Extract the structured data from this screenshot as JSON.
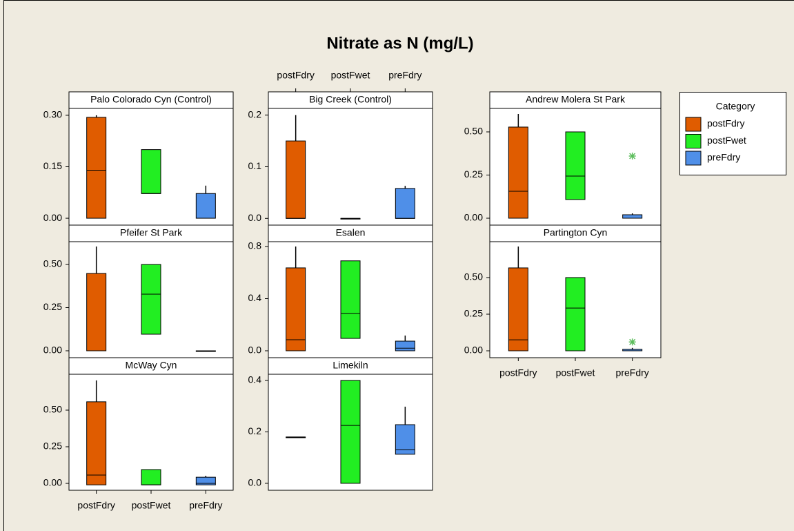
{
  "chart_data": {
    "type": "box",
    "title": "Nitrate as N (mg/L)",
    "legend_title": "Category",
    "categories": [
      "postFdry",
      "postFwet",
      "preFdry"
    ],
    "colors": [
      "#e05c00",
      "#22ee22",
      "#4f8fe8"
    ],
    "outlier_color": "#5cbd5c",
    "panels": [
      {
        "title": "Palo Colorado Cyn (Control)",
        "ylim": [
          -0.02,
          0.32
        ],
        "yticks": [
          {
            "value": 0,
            "label": "0.00"
          },
          {
            "value": 0.15,
            "label": "0.15"
          },
          {
            "value": 0.3,
            "label": "0.30"
          }
        ],
        "boxes": [
          {
            "min": 0,
            "q1": 0,
            "median": 0.14,
            "q3": 0.294,
            "max": 0.3
          },
          {
            "min": 0.072,
            "q1": 0.072,
            "median": 0.072,
            "q3": 0.2,
            "max": 0.2
          },
          {
            "min": 0,
            "q1": 0,
            "median": 0,
            "q3": 0.072,
            "max": 0.095
          }
        ]
      },
      {
        "title": "Big Creek (Control)",
        "ylim": [
          -0.013,
          0.213
        ],
        "yticks": [
          {
            "value": 0,
            "label": "0.0"
          },
          0.1,
          0.2
        ],
        "boxes": [
          {
            "min": 0,
            "q1": 0,
            "median": 0,
            "q3": 0.15,
            "max": 0.2
          },
          {
            "min": 0,
            "q1": 0,
            "median": 0,
            "q3": 0,
            "max": 0
          },
          {
            "min": 0,
            "q1": 0,
            "median": 0,
            "q3": 0.058,
            "max": 0.063
          }
        ]
      },
      {
        "title": "Andrew Molera St Park",
        "ylim": [
          -0.04,
          0.636
        ],
        "yticks": [
          {
            "value": 0,
            "label": "0.00"
          },
          {
            "value": 0.25,
            "label": "0.25"
          },
          {
            "value": 0.5,
            "label": "0.50"
          }
        ],
        "boxes": [
          {
            "min": 0,
            "q1": 0,
            "median": 0.156,
            "q3": 0.528,
            "max": 0.604
          },
          {
            "min": 0.108,
            "q1": 0.108,
            "median": 0.244,
            "q3": 0.5,
            "max": 0.5
          },
          {
            "min": 0,
            "q1": 0,
            "median": 0,
            "q3": 0.02,
            "max": 0.028,
            "outliers": [
              0.36
            ]
          }
        ]
      },
      {
        "title": "Pfeifer St Park",
        "ylim": [
          -0.04,
          0.632
        ],
        "yticks": [
          {
            "value": 0,
            "label": "0.00"
          },
          {
            "value": 0.25,
            "label": "0.25"
          },
          {
            "value": 0.5,
            "label": "0.50"
          }
        ],
        "boxes": [
          {
            "min": 0,
            "q1": 0,
            "median": 0,
            "q3": 0.448,
            "max": 0.604
          },
          {
            "min": 0.096,
            "q1": 0.096,
            "median": 0.328,
            "q3": 0.5,
            "max": 0.5
          },
          {
            "min": 0,
            "q1": 0,
            "median": 0,
            "q3": 0,
            "max": 0
          }
        ]
      },
      {
        "title": "Esalen",
        "ylim": [
          -0.053,
          0.837
        ],
        "yticks": [
          {
            "value": 0,
            "label": "0.0"
          },
          0.4,
          0.8
        ],
        "boxes": [
          {
            "min": 0,
            "q1": 0,
            "median": 0.085,
            "q3": 0.636,
            "max": 0.8
          },
          {
            "min": 0.095,
            "q1": 0.095,
            "median": 0.286,
            "q3": 0.69,
            "max": 0.69
          },
          {
            "min": 0,
            "q1": 0,
            "median": 0.02,
            "q3": 0.074,
            "max": 0.117
          }
        ]
      },
      {
        "title": "Partington Cyn",
        "ylim": [
          -0.047,
          0.745
        ],
        "yticks": [
          {
            "value": 0,
            "label": "0.00"
          },
          {
            "value": 0.25,
            "label": "0.25"
          },
          {
            "value": 0.5,
            "label": "0.50"
          }
        ],
        "boxes": [
          {
            "min": 0,
            "q1": 0,
            "median": 0.075,
            "q3": 0.566,
            "max": 0.712
          },
          {
            "min": 0,
            "q1": 0,
            "median": 0.292,
            "q3": 0.5,
            "max": 0.5
          },
          {
            "min": 0,
            "q1": 0,
            "median": 0,
            "q3": 0.01,
            "max": 0.02,
            "outliers": [
              0.06
            ]
          }
        ]
      },
      {
        "title": "McWay Cyn",
        "ylim": [
          -0.047,
          0.745
        ],
        "yticks": [
          {
            "value": 0,
            "label": "0.00"
          },
          {
            "value": 0.25,
            "label": "0.25"
          },
          {
            "value": 0.5,
            "label": "0.50"
          }
        ],
        "boxes": [
          {
            "min": -0.01,
            "q1": -0.01,
            "median": 0.057,
            "q3": 0.557,
            "max": 0.703
          },
          {
            "min": -0.01,
            "q1": -0.01,
            "median": -0.01,
            "q3": 0.094,
            "max": 0.094
          },
          {
            "min": -0.01,
            "q1": -0.01,
            "median": 0,
            "q3": 0.042,
            "max": 0.052
          }
        ]
      },
      {
        "title": "Limekiln",
        "ylim": [
          -0.027,
          0.424
        ],
        "yticks": [
          {
            "value": 0,
            "label": "0.0"
          },
          0.2,
          0.4
        ],
        "boxes": [
          {
            "min": 0.18,
            "q1": 0.18,
            "median": 0.18,
            "q3": 0.18,
            "max": 0.18
          },
          {
            "min": 0,
            "q1": 0,
            "median": 0.225,
            "q3": 0.4,
            "max": 0.4
          },
          {
            "min": 0.113,
            "q1": 0.113,
            "median": 0.13,
            "q3": 0.228,
            "max": 0.298
          }
        ]
      }
    ]
  }
}
